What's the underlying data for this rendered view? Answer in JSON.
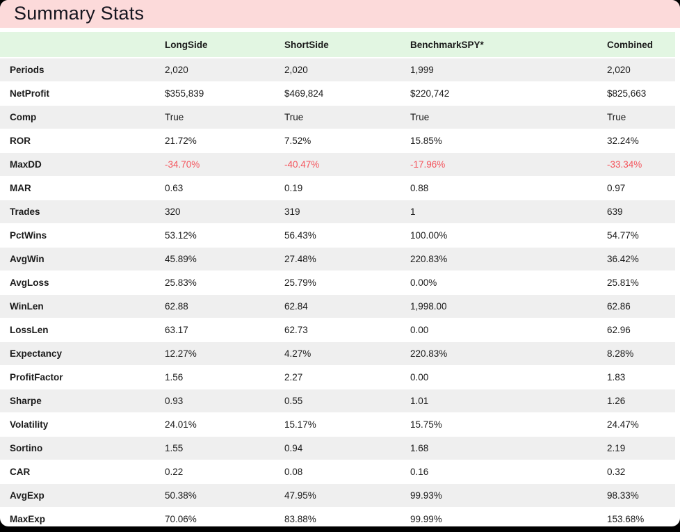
{
  "window": {
    "title": "Summary Stats"
  },
  "colors": {
    "title_bg": "#fcdada",
    "header_bg": "#e2f6e2",
    "row_alt_bg": "#efefef",
    "negative_text": "#f4545c",
    "text": "#1a1a1a"
  },
  "table": {
    "columns": [
      "",
      "LongSide",
      "ShortSide",
      "BenchmarkSPY*",
      "Combined"
    ],
    "rows": [
      {
        "label": "Periods",
        "values": [
          "2,020",
          "2,020",
          "1,999",
          "2,020"
        ],
        "negative": false
      },
      {
        "label": "NetProfit",
        "values": [
          "$355,839",
          "$469,824",
          "$220,742",
          "$825,663"
        ],
        "negative": false
      },
      {
        "label": "Comp",
        "values": [
          "True",
          "True",
          "True",
          "True"
        ],
        "negative": false
      },
      {
        "label": "ROR",
        "values": [
          "21.72%",
          "7.52%",
          "15.85%",
          "32.24%"
        ],
        "negative": false
      },
      {
        "label": "MaxDD",
        "values": [
          "-34.70%",
          "-40.47%",
          "-17.96%",
          "-33.34%"
        ],
        "negative": true
      },
      {
        "label": "MAR",
        "values": [
          "0.63",
          "0.19",
          "0.88",
          "0.97"
        ],
        "negative": false
      },
      {
        "label": "Trades",
        "values": [
          "320",
          "319",
          "1",
          "639"
        ],
        "negative": false
      },
      {
        "label": "PctWins",
        "values": [
          "53.12%",
          "56.43%",
          "100.00%",
          "54.77%"
        ],
        "negative": false
      },
      {
        "label": "AvgWin",
        "values": [
          "45.89%",
          "27.48%",
          "220.83%",
          "36.42%"
        ],
        "negative": false
      },
      {
        "label": "AvgLoss",
        "values": [
          "25.83%",
          "25.79%",
          "0.00%",
          "25.81%"
        ],
        "negative": false
      },
      {
        "label": "WinLen",
        "values": [
          "62.88",
          "62.84",
          "1,998.00",
          "62.86"
        ],
        "negative": false
      },
      {
        "label": "LossLen",
        "values": [
          "63.17",
          "62.73",
          "0.00",
          "62.96"
        ],
        "negative": false
      },
      {
        "label": "Expectancy",
        "values": [
          "12.27%",
          "4.27%",
          "220.83%",
          "8.28%"
        ],
        "negative": false
      },
      {
        "label": "ProfitFactor",
        "values": [
          "1.56",
          "2.27",
          "0.00",
          "1.83"
        ],
        "negative": false
      },
      {
        "label": "Sharpe",
        "values": [
          "0.93",
          "0.55",
          "1.01",
          "1.26"
        ],
        "negative": false
      },
      {
        "label": "Volatility",
        "values": [
          "24.01%",
          "15.17%",
          "15.75%",
          "24.47%"
        ],
        "negative": false
      },
      {
        "label": "Sortino",
        "values": [
          "1.55",
          "0.94",
          "1.68",
          "2.19"
        ],
        "negative": false
      },
      {
        "label": "CAR",
        "values": [
          "0.22",
          "0.08",
          "0.16",
          "0.32"
        ],
        "negative": false
      },
      {
        "label": "AvgExp",
        "values": [
          "50.38%",
          "47.95%",
          "99.93%",
          "98.33%"
        ],
        "negative": false
      },
      {
        "label": "MaxExp",
        "values": [
          "70.06%",
          "83.88%",
          "99.99%",
          "153.68%"
        ],
        "negative": false
      }
    ]
  }
}
